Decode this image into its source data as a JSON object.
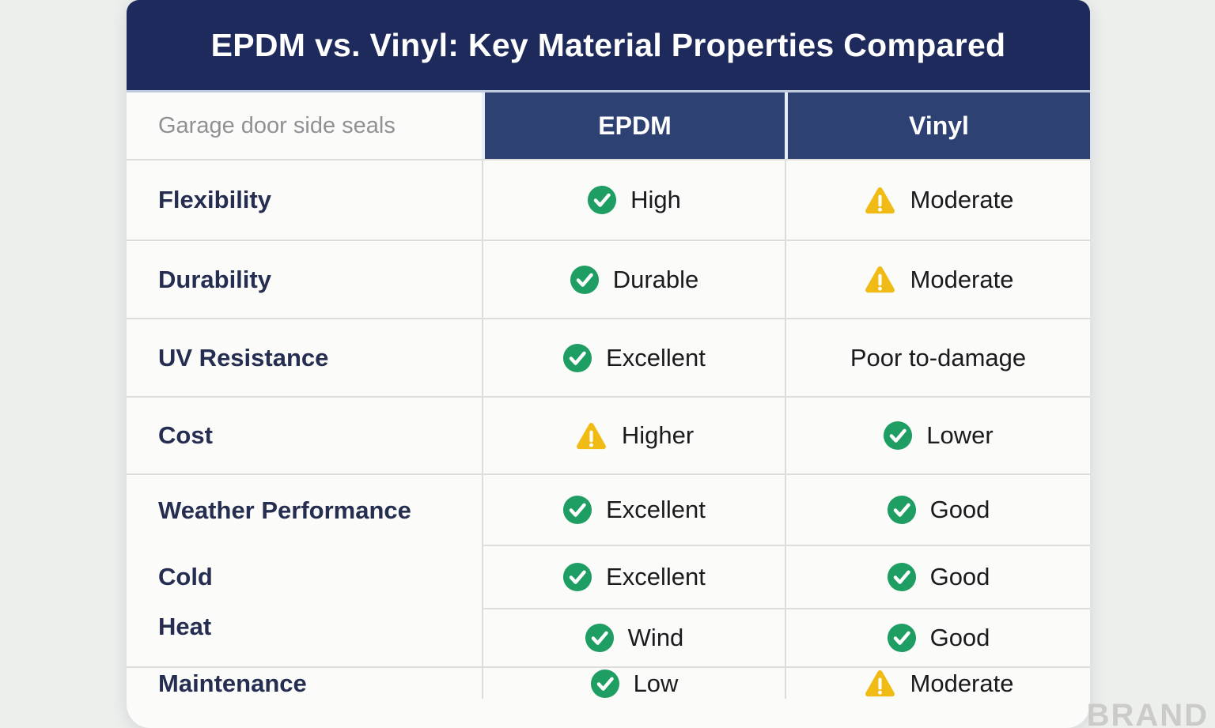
{
  "title": "EPDM vs. Vinyl: Key Material Properties Compared",
  "watermark": "BRAND",
  "colors": {
    "title_bar_navy": "#1e2a5b",
    "column_header_navy": "#2d4173",
    "check_green": "#1f9e63",
    "warning_yellow": "#f1bb16",
    "label_navy": "#252d50",
    "value_text": "#1a1b1d",
    "muted_gray": "#8f9195",
    "card_background": "#fbfbf9",
    "page_background": "#edefed"
  },
  "table": {
    "corner_label": "Garage door side seals",
    "col_headers": [
      "EPDM",
      "Vinyl"
    ],
    "rows": [
      {
        "label": "Flexibility",
        "cells": [
          {
            "icon": "check",
            "value": "High"
          },
          {
            "icon": "warning",
            "value": "Moderate"
          }
        ]
      },
      {
        "label": "Durability",
        "cells": [
          {
            "icon": "check",
            "value": "Durable"
          },
          {
            "icon": "warning",
            "value": "Moderate"
          }
        ]
      },
      {
        "label": "UV Resistance",
        "cells": [
          {
            "icon": "check",
            "value": "Excellent"
          },
          {
            "icon": "none",
            "value": "Poor to-damage"
          }
        ]
      },
      {
        "label": "Cost",
        "cells": [
          {
            "icon": "warning",
            "value": "Higher"
          },
          {
            "icon": "check",
            "value": "Lower"
          }
        ]
      },
      {
        "label": "Weather Performance",
        "cells": [
          {
            "icon": "check",
            "value": "Excellent"
          },
          {
            "icon": "check",
            "value": "Good"
          }
        ]
      },
      {
        "label": "Cold",
        "cells": [
          {
            "icon": "check",
            "value": "Excellent"
          },
          {
            "icon": "check",
            "value": "Good"
          }
        ]
      },
      {
        "label": "Heat",
        "cells": [
          {
            "icon": "check",
            "value": "Wind"
          },
          {
            "icon": "check",
            "value": "Good"
          }
        ]
      },
      {
        "label": "Maintenance",
        "cells": [
          {
            "icon": "check",
            "value": "Low"
          },
          {
            "icon": "warning",
            "value": "Moderate"
          }
        ]
      }
    ]
  },
  "chart_data": {
    "type": "table",
    "title": "EPDM vs. Vinyl: Key Material Properties Compared",
    "columns": [
      "Garage door side seals",
      "EPDM",
      "Vinyl"
    ],
    "rows": [
      [
        "Flexibility",
        "High (positive)",
        "Moderate (warning)"
      ],
      [
        "Durability",
        "Durable (positive)",
        "Moderate (warning)"
      ],
      [
        "UV Resistance",
        "Excellent (positive)",
        "Poor to-damage"
      ],
      [
        "Cost",
        "Higher (warning)",
        "Lower (positive)"
      ],
      [
        "Weather Performance",
        "Excellent (positive)",
        "Good (positive)"
      ],
      [
        "Cold",
        "Excellent (positive)",
        "Good (positive)"
      ],
      [
        "Heat",
        "Wind (positive)",
        "Good (positive)"
      ],
      [
        "Maintenance",
        "Low (positive)",
        "Moderate (warning)"
      ]
    ]
  }
}
